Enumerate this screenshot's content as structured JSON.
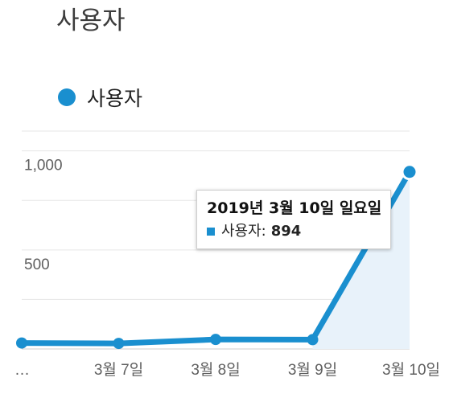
{
  "card": {
    "title": "사용자"
  },
  "colors": {
    "series": "#1a8fcf",
    "area_fill": "#e8f2fa",
    "grid": "#e6e6e6"
  },
  "tooltip": {
    "title": "2019년 3월 10일 일요일",
    "series_label": "사용자:",
    "value": "894"
  },
  "chart_data": {
    "type": "area",
    "categories": [
      "…",
      "3월 7일",
      "3월 8일",
      "3월 9일",
      "3월 10일"
    ],
    "x_tick_labels": [
      "…",
      "3월 7일",
      "3월 8일",
      "3월 9일",
      "3월 10일"
    ],
    "series": [
      {
        "name": "사용자",
        "values": [
          30,
          28,
          48,
          47,
          894
        ]
      }
    ],
    "ylim": [
      0,
      1000
    ],
    "y_ticks": [
      0,
      500,
      1000
    ],
    "y_tick_labels": [
      "",
      "500",
      "1,000"
    ],
    "legend": "top-left",
    "grid": true,
    "highlighted_index": 4
  }
}
